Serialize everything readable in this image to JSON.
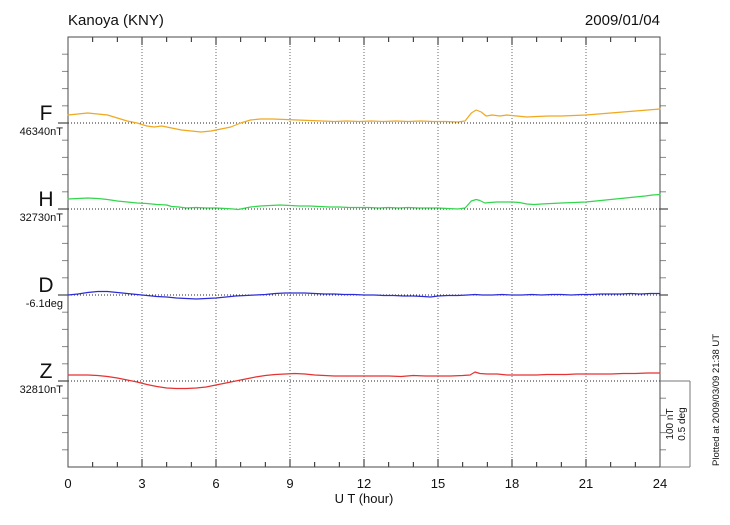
{
  "header": {
    "title": "Kanoya (KNY)",
    "date": "2009/01/04"
  },
  "footer": {
    "xlabel": "U T (hour)",
    "plotted_note": "Plotted at 2009/03/09 21:38 UT"
  },
  "scalebar": {
    "nt_label": "100 nT",
    "deg_label": "0.5 deg"
  },
  "colors": {
    "frame": "#4a4a4a",
    "grid_vertical": "#666666",
    "baseline_dots": "#222222",
    "minor_tick": "#888888",
    "major_tick": "#222222",
    "scalebar_line": "#777777"
  },
  "chart_data": {
    "type": "line",
    "title": "Kanoya (KNY)",
    "subtitle": "2009/01/04",
    "xlabel": "U T (hour)",
    "xlim": [
      0,
      24
    ],
    "xticks": [
      0,
      3,
      6,
      9,
      12,
      15,
      18,
      21,
      24
    ],
    "x_gridlines": [
      3,
      6,
      9,
      12,
      15,
      18,
      21
    ],
    "grid": "dotted",
    "scale_note": "vertical scale bar = 100 nT (F,H,Z) / 0.5 deg (D)",
    "units_note": "point offsets are nT-equivalent deviation from the dotted baseline (100 nT per scale bar; D converted at 0.5 deg = 100 nT)",
    "series": [
      {
        "name": "F",
        "baseline_label": "46340nT",
        "baseline_value": 46340,
        "unit": "nT",
        "color": "#f0a81e",
        "points": [
          [
            0,
            9.3
          ],
          [
            0.4,
            10.5
          ],
          [
            0.8,
            11.6
          ],
          [
            1.2,
            10.5
          ],
          [
            1.6,
            9.3
          ],
          [
            2,
            5.8
          ],
          [
            2.4,
            2.3
          ],
          [
            2.8,
            0
          ],
          [
            3.2,
            -3.5
          ],
          [
            3.5,
            -4.7
          ],
          [
            3.8,
            -3.5
          ],
          [
            4.2,
            -5.8
          ],
          [
            4.6,
            -8.1
          ],
          [
            5,
            -9.3
          ],
          [
            5.4,
            -10.5
          ],
          [
            5.8,
            -9.3
          ],
          [
            6.2,
            -7
          ],
          [
            6.6,
            -4.7
          ],
          [
            7,
            0
          ],
          [
            7.4,
            3.5
          ],
          [
            7.8,
            4.7
          ],
          [
            8.3,
            4.7
          ],
          [
            8.8,
            4.1
          ],
          [
            9.3,
            3.5
          ],
          [
            9.8,
            2.9
          ],
          [
            10.3,
            2.3
          ],
          [
            10.8,
            1.7
          ],
          [
            11.3,
            2.3
          ],
          [
            11.8,
            1.7
          ],
          [
            12.3,
            2.3
          ],
          [
            12.8,
            1.7
          ],
          [
            13.3,
            2.3
          ],
          [
            13.8,
            1.7
          ],
          [
            14.3,
            2.3
          ],
          [
            14.8,
            1.7
          ],
          [
            15.3,
            1.7
          ],
          [
            15.8,
            1.2
          ],
          [
            16.1,
            2.3
          ],
          [
            16.35,
            11.6
          ],
          [
            16.55,
            15.1
          ],
          [
            16.75,
            12.8
          ],
          [
            16.95,
            8.1
          ],
          [
            17.2,
            9.3
          ],
          [
            17.5,
            8.1
          ],
          [
            17.8,
            9.3
          ],
          [
            18.2,
            8.1
          ],
          [
            18.6,
            7
          ],
          [
            19,
            7.6
          ],
          [
            19.5,
            8.1
          ],
          [
            20,
            8.1
          ],
          [
            20.5,
            8.7
          ],
          [
            21,
            9.3
          ],
          [
            21.5,
            10.5
          ],
          [
            22,
            11.6
          ],
          [
            22.5,
            12.8
          ],
          [
            23,
            14
          ],
          [
            23.5,
            15.1
          ],
          [
            24,
            16.3
          ]
        ]
      },
      {
        "name": "H",
        "baseline_label": "32730nT",
        "baseline_value": 32730,
        "unit": "nT",
        "color": "#33d64d",
        "points": [
          [
            0,
            11.6
          ],
          [
            0.4,
            12.2
          ],
          [
            0.8,
            12.8
          ],
          [
            1.2,
            12.2
          ],
          [
            1.6,
            11
          ],
          [
            2,
            9.3
          ],
          [
            2.4,
            8.1
          ],
          [
            2.8,
            7
          ],
          [
            3.2,
            6.4
          ],
          [
            3.6,
            5.2
          ],
          [
            4,
            4.7
          ],
          [
            4.2,
            2.9
          ],
          [
            4.5,
            2.3
          ],
          [
            4.8,
            1.2
          ],
          [
            5.2,
            1.7
          ],
          [
            5.6,
            1.2
          ],
          [
            6,
            1.2
          ],
          [
            6.4,
            0.6
          ],
          [
            6.7,
            0
          ],
          [
            6.9,
            -0.6
          ],
          [
            7.1,
            0.6
          ],
          [
            7.4,
            2.3
          ],
          [
            7.8,
            3.5
          ],
          [
            8.2,
            4.1
          ],
          [
            8.6,
            4.7
          ],
          [
            9,
            4.1
          ],
          [
            9.4,
            3.5
          ],
          [
            9.8,
            3.5
          ],
          [
            10.2,
            2.9
          ],
          [
            10.6,
            2.3
          ],
          [
            11,
            2.3
          ],
          [
            11.4,
            1.7
          ],
          [
            11.8,
            1.7
          ],
          [
            12.2,
            1.7
          ],
          [
            12.6,
            1.2
          ],
          [
            13,
            1.7
          ],
          [
            13.4,
            1.2
          ],
          [
            13.8,
            1.7
          ],
          [
            14.2,
            1.2
          ],
          [
            14.6,
            1.2
          ],
          [
            15,
            1.2
          ],
          [
            15.4,
            0.6
          ],
          [
            15.8,
            0
          ],
          [
            16.1,
            1.2
          ],
          [
            16.35,
            9.3
          ],
          [
            16.55,
            11
          ],
          [
            16.7,
            9.9
          ],
          [
            16.9,
            7
          ],
          [
            17.1,
            7.6
          ],
          [
            17.4,
            8.1
          ],
          [
            17.7,
            8.1
          ],
          [
            18,
            8.1
          ],
          [
            18.3,
            7.6
          ],
          [
            18.6,
            5.8
          ],
          [
            18.9,
            5.2
          ],
          [
            19.2,
            5.8
          ],
          [
            19.6,
            6.4
          ],
          [
            20,
            7
          ],
          [
            20.5,
            7.6
          ],
          [
            21,
            8.1
          ],
          [
            21.4,
            9.3
          ],
          [
            21.8,
            10.5
          ],
          [
            22.2,
            11.6
          ],
          [
            22.6,
            12.8
          ],
          [
            23,
            14
          ],
          [
            23.4,
            15.1
          ],
          [
            23.7,
            16.3
          ],
          [
            24,
            16.9
          ]
        ]
      },
      {
        "name": "D",
        "baseline_label": "-6.1deg",
        "baseline_value": -6.1,
        "unit": "deg",
        "color": "#2c2cd8",
        "points": [
          [
            0,
            0
          ],
          [
            0.4,
            1.2
          ],
          [
            0.8,
            2.9
          ],
          [
            1.2,
            4.1
          ],
          [
            1.6,
            4.1
          ],
          [
            2,
            2.9
          ],
          [
            2.4,
            1.7
          ],
          [
            2.8,
            0.6
          ],
          [
            3.2,
            -0.6
          ],
          [
            3.6,
            -1.7
          ],
          [
            4,
            -2.3
          ],
          [
            4.4,
            -3.5
          ],
          [
            4.8,
            -4.1
          ],
          [
            5.2,
            -4.7
          ],
          [
            5.6,
            -4.1
          ],
          [
            6,
            -3.5
          ],
          [
            6.4,
            -2.3
          ],
          [
            6.8,
            -1.2
          ],
          [
            7.2,
            -0.6
          ],
          [
            7.6,
            0
          ],
          [
            8,
            0.6
          ],
          [
            8.4,
            1.7
          ],
          [
            8.8,
            2.3
          ],
          [
            9.2,
            2.3
          ],
          [
            9.6,
            2.3
          ],
          [
            10,
            1.7
          ],
          [
            10.4,
            1.2
          ],
          [
            10.8,
            1.2
          ],
          [
            11.2,
            0.6
          ],
          [
            11.6,
            0.6
          ],
          [
            12,
            0
          ],
          [
            12.4,
            0
          ],
          [
            12.8,
            -0.6
          ],
          [
            13.2,
            -0.6
          ],
          [
            13.6,
            -1.2
          ],
          [
            14,
            -1.2
          ],
          [
            14.4,
            -1.7
          ],
          [
            14.7,
            -2.3
          ],
          [
            15,
            -1.2
          ],
          [
            15.4,
            -0.6
          ],
          [
            15.8,
            -0.6
          ],
          [
            16.2,
            0
          ],
          [
            16.5,
            0.6
          ],
          [
            16.8,
            0
          ],
          [
            17.2,
            0
          ],
          [
            17.6,
            0.6
          ],
          [
            18,
            0
          ],
          [
            18.4,
            0
          ],
          [
            18.8,
            0.6
          ],
          [
            19.2,
            0
          ],
          [
            19.6,
            0.6
          ],
          [
            20,
            0.6
          ],
          [
            20.4,
            0
          ],
          [
            20.8,
            0.6
          ],
          [
            21.2,
            0.6
          ],
          [
            21.6,
            1.2
          ],
          [
            22,
            1.2
          ],
          [
            22.4,
            1.2
          ],
          [
            22.8,
            1.7
          ],
          [
            23.2,
            1.2
          ],
          [
            23.6,
            1.7
          ],
          [
            24,
            1.7
          ]
        ]
      },
      {
        "name": "Z",
        "baseline_label": "32810nT",
        "baseline_value": 32810,
        "unit": "nT",
        "color": "#e63232",
        "points": [
          [
            0,
            7
          ],
          [
            0.4,
            7
          ],
          [
            0.8,
            7
          ],
          [
            1.2,
            6.4
          ],
          [
            1.6,
            5.2
          ],
          [
            2,
            3.5
          ],
          [
            2.4,
            1.2
          ],
          [
            2.8,
            -1.2
          ],
          [
            3.2,
            -4.1
          ],
          [
            3.6,
            -6.4
          ],
          [
            4,
            -8.1
          ],
          [
            4.4,
            -8.7
          ],
          [
            4.8,
            -8.7
          ],
          [
            5.2,
            -8.1
          ],
          [
            5.6,
            -7
          ],
          [
            6,
            -4.7
          ],
          [
            6.4,
            -2.3
          ],
          [
            6.8,
            0
          ],
          [
            7.2,
            2.3
          ],
          [
            7.6,
            4.7
          ],
          [
            8,
            6.4
          ],
          [
            8.4,
            7.6
          ],
          [
            8.8,
            8.1
          ],
          [
            9.2,
            8.7
          ],
          [
            9.6,
            8.1
          ],
          [
            10,
            7
          ],
          [
            10.4,
            6.4
          ],
          [
            10.8,
            5.8
          ],
          [
            11.2,
            5.8
          ],
          [
            11.6,
            5.8
          ],
          [
            12,
            5.8
          ],
          [
            12.5,
            5.8
          ],
          [
            13,
            5.8
          ],
          [
            13.5,
            5.2
          ],
          [
            14,
            6.4
          ],
          [
            14.5,
            5.8
          ],
          [
            15,
            5.8
          ],
          [
            15.5,
            5.8
          ],
          [
            16,
            6.4
          ],
          [
            16.3,
            7
          ],
          [
            16.5,
            10.5
          ],
          [
            16.7,
            8.7
          ],
          [
            17,
            8.1
          ],
          [
            17.4,
            8.1
          ],
          [
            17.8,
            7
          ],
          [
            18.2,
            7
          ],
          [
            18.6,
            7
          ],
          [
            19,
            7
          ],
          [
            19.4,
            7.6
          ],
          [
            19.8,
            7.6
          ],
          [
            20.2,
            7.6
          ],
          [
            20.6,
            8.1
          ],
          [
            21,
            8.1
          ],
          [
            21.5,
            8.1
          ],
          [
            22,
            8.1
          ],
          [
            22.5,
            8.7
          ],
          [
            23,
            8.7
          ],
          [
            23.5,
            9.3
          ],
          [
            24,
            9.3
          ]
        ]
      }
    ]
  }
}
